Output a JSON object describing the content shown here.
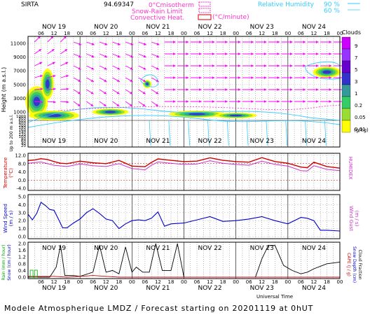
{
  "header": {
    "station": "SIRTA",
    "coordinates": "94.69347",
    "legend": {
      "isotherm": "0°Cmisotherm",
      "snow_rain": "Snow-Rain Limit",
      "convective": "Convective Heat.",
      "convective_unit": "(°C/minute)",
      "relative_humidity": "Relative Humidity",
      "rh_90": "90 %",
      "rh_60": "60 %"
    }
  },
  "colors": {
    "isotherm": "#ff33cc",
    "humidity": "#33ccff",
    "temperature": "#cc0000",
    "humidex": "#cc33cc",
    "wind": "#0000cc",
    "rain": "#00aa00",
    "cloud_fraction": "#000000"
  },
  "time": {
    "start_label": "NOV 19",
    "days": [
      "NOV 19",
      "NOV 20",
      "NOV 21",
      "NOV 22",
      "NOV 23",
      "NOV 24"
    ],
    "hour_ticks": [
      "06",
      "12",
      "18",
      "00"
    ],
    "total_hours": 144
  },
  "panels": {
    "clouds": {
      "ylabel": "Height (m a.s.l.)",
      "ylabel_low": "Up to 200 m a.s.l.",
      "upper_ticks": [
        "11000",
        "9000",
        "7000",
        "5000",
        "3000",
        "1000"
      ],
      "lower_ticks": [
        "1000",
        "800",
        "600",
        "400",
        "200",
        "180",
        "160",
        "140",
        "120",
        "100",
        "80",
        "60",
        "40",
        "20"
      ],
      "colorbar": {
        "title": "Clouds",
        "unit": "(g/kg)",
        "levels": [
          "9",
          "7",
          "5",
          "3",
          "1",
          "0.2",
          "0.05",
          "0.01"
        ],
        "colors": [
          "#cc00ff",
          "#9933ff",
          "#6600cc",
          "#3333cc",
          "#339999",
          "#33cc66",
          "#99dd33",
          "#ffff00"
        ]
      }
    },
    "temperature": {
      "ylabel": "Temperature",
      "yunit": "(°C)",
      "ylabel_right": "HUMIDEX",
      "ticks": [
        "12.0",
        "8.0",
        "4.0",
        "0.0",
        "-4.0"
      ]
    },
    "wind": {
      "ylabel": "Wind Speed",
      "yunit": "(m / s)",
      "ylabel_right": "Wind Gust",
      "yunit_right": "(m / s)",
      "ticks": [
        "5.0",
        "4.0",
        "3.0",
        "2.0",
        "1.0",
        "0.0"
      ]
    },
    "precip": {
      "ylabel_rain": "Rain (mm / hour)",
      "ylabel_snow": "Snow (cm / hour)",
      "ylabel_cape": "CAPE (J / g)",
      "ylabel_snowdepth": "Snow Depth (cm)",
      "ylabel_cloudfrac": "Cloud Fraction",
      "ticks": [
        "2.0",
        "1.6",
        "1.2",
        "0.8",
        "0.4",
        "0.0"
      ],
      "xlabel": "Universal Time"
    }
  },
  "footer": {
    "text": "Modele Atmospherique LMDZ / Forecast starting on 20201119 at 0hUT"
  },
  "chart_data": [
    {
      "type": "line",
      "name": "temperature-panel",
      "x_unit": "hours",
      "ylim": [
        -4,
        12
      ],
      "series": [
        {
          "name": "Temperature",
          "x": [
            0,
            3,
            6,
            9,
            12,
            15,
            18,
            21,
            24,
            30,
            36,
            42,
            48,
            54,
            57,
            60,
            66,
            72,
            78,
            84,
            90,
            96,
            102,
            108,
            114,
            120,
            126,
            129,
            132,
            138,
            144
          ],
          "values": [
            9.5,
            9.8,
            10.4,
            10.0,
            9.0,
            8.2,
            8.0,
            8.6,
            9.2,
            8.4,
            8.0,
            9.6,
            6.8,
            6.5,
            8.6,
            10.3,
            9.6,
            9.0,
            9.2,
            10.8,
            9.6,
            9.0,
            8.7,
            10.9,
            9.0,
            8.2,
            6.3,
            6.0,
            8.7,
            6.6,
            5.8
          ]
        },
        {
          "name": "HUMIDEX",
          "x": [
            0,
            6,
            12,
            18,
            24,
            30,
            36,
            42,
            48,
            54,
            57,
            60,
            66,
            72,
            78,
            84,
            90,
            96,
            102,
            108,
            114,
            120,
            126,
            129,
            132,
            138,
            144
          ],
          "values": [
            8.2,
            8.8,
            7.2,
            6.6,
            7.8,
            7.0,
            6.6,
            8.0,
            5.6,
            5.0,
            7.2,
            8.8,
            8.2,
            7.6,
            7.8,
            9.4,
            8.2,
            7.6,
            7.2,
            9.2,
            7.6,
            6.8,
            4.6,
            4.4,
            7.0,
            5.2,
            4.6
          ]
        }
      ]
    },
    {
      "type": "line",
      "name": "wind-panel",
      "x_unit": "hours",
      "ylim": [
        0,
        5
      ],
      "series": [
        {
          "name": "Wind Speed",
          "x": [
            0,
            2,
            4,
            6,
            8,
            10,
            12,
            14,
            16,
            18,
            21,
            24,
            27,
            30,
            33,
            36,
            39,
            42,
            45,
            48,
            51,
            54,
            57,
            60,
            63,
            66,
            72,
            78,
            84,
            90,
            96,
            102,
            108,
            114,
            120,
            126,
            129,
            132,
            135,
            138,
            144
          ],
          "values": [
            2.8,
            2.1,
            2.9,
            4.3,
            3.9,
            3.4,
            3.3,
            2.2,
            1.1,
            1.1,
            1.7,
            2.2,
            3.0,
            3.5,
            2.9,
            2.2,
            2.0,
            1.0,
            1.6,
            2.0,
            2.1,
            2.0,
            2.3,
            3.1,
            1.3,
            1.6,
            1.7,
            2.1,
            2.5,
            1.9,
            2.0,
            2.2,
            2.5,
            2.0,
            1.6,
            2.4,
            2.3,
            2.0,
            0.8,
            0.8,
            0.7
          ]
        }
      ]
    },
    {
      "type": "line",
      "name": "precipitation-panel",
      "x_unit": "hours",
      "ylim": [
        0,
        2
      ],
      "series": [
        {
          "name": "Cloud Fraction",
          "x": [
            0,
            10,
            13,
            15,
            17,
            21,
            24,
            30,
            33,
            36,
            39,
            42,
            45,
            48,
            50,
            53,
            56,
            59,
            62,
            66,
            69,
            72,
            78,
            84,
            90,
            96,
            102,
            105,
            108,
            111,
            114,
            118,
            122,
            126,
            129,
            132,
            138,
            144
          ],
          "values": [
            0,
            0,
            0.6,
            1.9,
            0.1,
            0.1,
            0.05,
            0.3,
            1.9,
            0.3,
            0.4,
            0.2,
            1.8,
            0.3,
            0.6,
            0.3,
            0.3,
            2.0,
            0.4,
            0.4,
            2.0,
            0.0,
            0.0,
            0.0,
            0.0,
            0.0,
            0.0,
            0.0,
            1.1,
            1.9,
            1.9,
            0.7,
            0.4,
            0.2,
            0.3,
            0.5,
            0.8,
            0.9
          ]
        },
        {
          "name": "Rain",
          "x": [
            0,
            6,
            12,
            18,
            24,
            30,
            36,
            42,
            48,
            60,
            72,
            96,
            120,
            144
          ],
          "values": [
            0.05,
            0.05,
            0.05,
            0.0,
            0.05,
            0.1,
            0.05,
            0.0,
            0.0,
            0.0,
            0.0,
            0.0,
            0.0,
            0.0
          ]
        }
      ]
    }
  ]
}
